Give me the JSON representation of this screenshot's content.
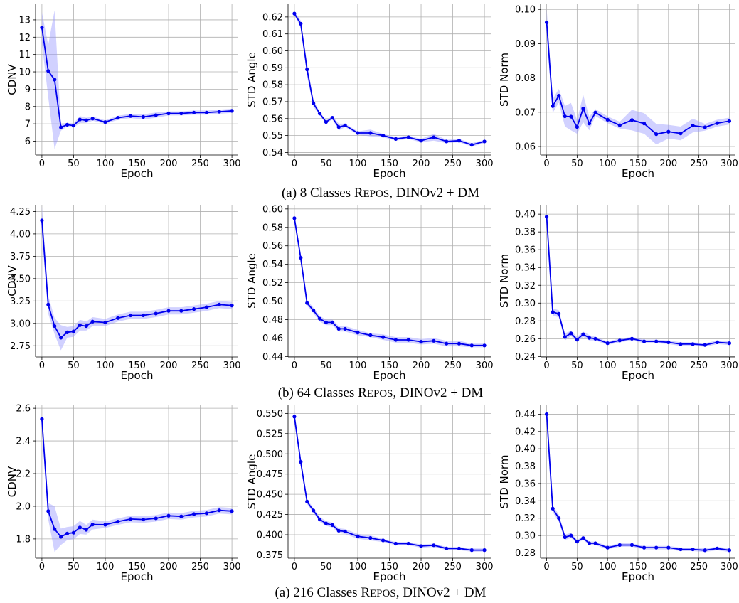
{
  "colors": {
    "line": "#0000ee",
    "band": "#9999ff",
    "grid": "#b0b0b0"
  },
  "captions": [
    {
      "prefix": "(a) 8 Classes ",
      "rep": "R",
      "epos": "EPOS",
      "suffix": ", DINOv2 + DM"
    },
    {
      "prefix": "(b) 64 Classes ",
      "rep": "R",
      "epos": "EPOS",
      "suffix": ", DINOv2 + DM"
    },
    {
      "prefix": "(a) 216 Classes ",
      "rep": "R",
      "epos": "EPOS",
      "suffix": ", DINOv2 + DM"
    }
  ],
  "chart_data": [
    {
      "type": "line",
      "row": 0,
      "col": 0,
      "xlabel": "Epoch",
      "ylabel": "CDNV",
      "xlim": [
        -10,
        310
      ],
      "xticks": [
        0,
        50,
        100,
        150,
        200,
        250,
        300
      ],
      "ylim": [
        5.2,
        13.9
      ],
      "yticks": [
        6,
        7,
        8,
        9,
        10,
        11,
        12,
        13
      ],
      "ydec": 0,
      "x": [
        0,
        10,
        20,
        30,
        40,
        50,
        60,
        70,
        80,
        100,
        120,
        140,
        160,
        180,
        200,
        220,
        240,
        260,
        280,
        300
      ],
      "y": [
        12.55,
        10.05,
        9.55,
        6.8,
        6.95,
        6.9,
        7.25,
        7.2,
        7.3,
        7.1,
        7.35,
        7.45,
        7.4,
        7.5,
        7.6,
        7.6,
        7.65,
        7.65,
        7.7,
        7.75
      ],
      "band": [
        0.9,
        1.5,
        4.0,
        0.2,
        0.1,
        0.12,
        0.2,
        0.15,
        0.12,
        0.1,
        0.12,
        0.12,
        0.15,
        0.15,
        0.12,
        0.12,
        0.12,
        0.12,
        0.12,
        0.12
      ]
    },
    {
      "type": "line",
      "row": 0,
      "col": 1,
      "xlabel": "Epoch",
      "ylabel": "STD Angle",
      "xlim": [
        -10,
        310
      ],
      "xticks": [
        0,
        50,
        100,
        150,
        200,
        250,
        300
      ],
      "ylim": [
        0.5385,
        0.6275
      ],
      "yticks": [
        0.54,
        0.55,
        0.56,
        0.57,
        0.58,
        0.59,
        0.6,
        0.61,
        0.62
      ],
      "ydec": 2,
      "x": [
        0,
        10,
        20,
        30,
        40,
        50,
        60,
        70,
        80,
        100,
        120,
        140,
        160,
        180,
        200,
        220,
        240,
        260,
        280,
        300
      ],
      "y": [
        0.622,
        0.616,
        0.589,
        0.569,
        0.563,
        0.558,
        0.5605,
        0.555,
        0.556,
        0.5515,
        0.5515,
        0.55,
        0.548,
        0.549,
        0.547,
        0.549,
        0.5465,
        0.547,
        0.5445,
        0.5465
      ],
      "band": [
        0.001,
        0.002,
        0.004,
        0.002,
        0.001,
        0.001,
        0.001,
        0.002,
        0.001,
        0.001,
        0.002,
        0.001,
        0.001,
        0.001,
        0.001,
        0.002,
        0.001,
        0.001,
        0.001,
        0.001
      ]
    },
    {
      "type": "line",
      "row": 0,
      "col": 2,
      "xlabel": "Epoch",
      "ylabel": "STD Norm",
      "xlim": [
        -10,
        310
      ],
      "xticks": [
        0,
        50,
        100,
        150,
        200,
        250,
        300
      ],
      "ylim": [
        0.0575,
        0.1015
      ],
      "yticks": [
        0.06,
        0.07,
        0.08,
        0.09,
        0.1
      ],
      "ydec": 2,
      "x": [
        0,
        10,
        20,
        30,
        40,
        50,
        60,
        70,
        80,
        100,
        120,
        140,
        160,
        180,
        200,
        220,
        240,
        260,
        280,
        300
      ],
      "y": [
        0.0962,
        0.0718,
        0.0748,
        0.0688,
        0.0687,
        0.0657,
        0.0711,
        0.0667,
        0.0699,
        0.0678,
        0.0662,
        0.0677,
        0.0667,
        0.0636,
        0.0643,
        0.0638,
        0.0661,
        0.0656,
        0.0668,
        0.0674
      ],
      "band": [
        0.004,
        0.002,
        0.002,
        0.003,
        0.004,
        0.002,
        0.004,
        0.002,
        0.001,
        0.001,
        0.001,
        0.003,
        0.003,
        0.003,
        0.002,
        0.002,
        0.002,
        0.001,
        0.001,
        0.001
      ]
    },
    {
      "type": "line",
      "row": 1,
      "col": 0,
      "xlabel": "Epoch",
      "ylabel": "CDNV",
      "xlim": [
        -10,
        310
      ],
      "xticks": [
        0,
        50,
        100,
        150,
        200,
        250,
        300
      ],
      "ylim": [
        2.625,
        4.325
      ],
      "yticks": [
        2.75,
        3.0,
        3.25,
        3.5,
        3.75,
        4.0,
        4.25
      ],
      "ydec": 2,
      "x": [
        0,
        10,
        20,
        30,
        40,
        50,
        60,
        70,
        80,
        100,
        120,
        140,
        160,
        180,
        200,
        220,
        240,
        260,
        280,
        300
      ],
      "y": [
        4.15,
        3.21,
        2.97,
        2.84,
        2.9,
        2.91,
        2.98,
        2.97,
        3.02,
        3.01,
        3.06,
        3.09,
        3.09,
        3.11,
        3.14,
        3.14,
        3.16,
        3.18,
        3.21,
        3.2
      ],
      "band": [
        0.16,
        0.1,
        0.09,
        0.14,
        0.06,
        0.06,
        0.06,
        0.05,
        0.05,
        0.04,
        0.04,
        0.04,
        0.04,
        0.04,
        0.04,
        0.04,
        0.04,
        0.04,
        0.04,
        0.04
      ]
    },
    {
      "type": "line",
      "row": 1,
      "col": 1,
      "xlabel": "Epoch",
      "ylabel": "STD Angle",
      "xlim": [
        -10,
        310
      ],
      "xticks": [
        0,
        50,
        100,
        150,
        200,
        250,
        300
      ],
      "ylim": [
        0.4395,
        0.6045
      ],
      "yticks": [
        0.44,
        0.46,
        0.48,
        0.5,
        0.52,
        0.54,
        0.56,
        0.58,
        0.6
      ],
      "ydec": 2,
      "x": [
        0,
        10,
        20,
        30,
        40,
        50,
        60,
        70,
        80,
        100,
        120,
        140,
        160,
        180,
        200,
        220,
        240,
        260,
        280,
        300
      ],
      "y": [
        0.59,
        0.547,
        0.498,
        0.49,
        0.481,
        0.477,
        0.477,
        0.47,
        0.47,
        0.466,
        0.463,
        0.461,
        0.458,
        0.458,
        0.456,
        0.457,
        0.454,
        0.454,
        0.452,
        0.452
      ],
      "band": [
        0.004,
        0.004,
        0.003,
        0.003,
        0.003,
        0.003,
        0.003,
        0.003,
        0.003,
        0.003,
        0.002,
        0.003,
        0.003,
        0.003,
        0.003,
        0.003,
        0.003,
        0.003,
        0.002,
        0.002
      ]
    },
    {
      "type": "line",
      "row": 1,
      "col": 2,
      "xlabel": "Epoch",
      "ylabel": "STD Norm",
      "xlim": [
        -10,
        310
      ],
      "xticks": [
        0,
        50,
        100,
        150,
        200,
        250,
        300
      ],
      "ylim": [
        0.2395,
        0.4105
      ],
      "yticks": [
        0.24,
        0.26,
        0.28,
        0.3,
        0.32,
        0.34,
        0.36,
        0.38,
        0.4
      ],
      "ydec": 2,
      "x": [
        0,
        10,
        20,
        30,
        40,
        50,
        60,
        70,
        80,
        100,
        120,
        140,
        160,
        180,
        200,
        220,
        240,
        260,
        280,
        300
      ],
      "y": [
        0.397,
        0.29,
        0.288,
        0.262,
        0.266,
        0.259,
        0.265,
        0.261,
        0.26,
        0.255,
        0.258,
        0.26,
        0.257,
        0.257,
        0.256,
        0.254,
        0.254,
        0.253,
        0.256,
        0.255
      ],
      "band": [
        0.004,
        0.004,
        0.004,
        0.004,
        0.003,
        0.003,
        0.003,
        0.003,
        0.002,
        0.002,
        0.002,
        0.002,
        0.002,
        0.002,
        0.002,
        0.002,
        0.002,
        0.002,
        0.002,
        0.002
      ]
    },
    {
      "type": "line",
      "row": 2,
      "col": 0,
      "xlabel": "Epoch",
      "ylabel": "CDNV",
      "xlim": [
        -10,
        310
      ],
      "xticks": [
        0,
        50,
        100,
        150,
        200,
        250,
        300
      ],
      "ylim": [
        1.682,
        2.618
      ],
      "yticks": [
        1.8,
        2.0,
        2.2,
        2.4,
        2.6
      ],
      "ydec": 1,
      "x": [
        0,
        10,
        20,
        30,
        40,
        50,
        60,
        70,
        80,
        100,
        120,
        140,
        160,
        180,
        200,
        220,
        240,
        260,
        280,
        300
      ],
      "y": [
        2.535,
        1.97,
        1.86,
        1.813,
        1.833,
        1.838,
        1.87,
        1.856,
        1.888,
        1.887,
        1.906,
        1.922,
        1.919,
        1.926,
        1.942,
        1.938,
        1.952,
        1.957,
        1.975,
        1.97
      ],
      "band": [
        0.01,
        0.05,
        0.14,
        0.05,
        0.04,
        0.04,
        0.04,
        0.03,
        0.03,
        0.02,
        0.02,
        0.02,
        0.02,
        0.02,
        0.02,
        0.02,
        0.02,
        0.02,
        0.02,
        0.02
      ]
    },
    {
      "type": "line",
      "row": 2,
      "col": 1,
      "xlabel": "Epoch",
      "ylabel": "STD Angle",
      "xlim": [
        -10,
        310
      ],
      "xticks": [
        0,
        50,
        100,
        150,
        200,
        250,
        300
      ],
      "ylim": [
        0.371,
        0.56
      ],
      "yticks": [
        0.375,
        0.4,
        0.425,
        0.45,
        0.475,
        0.5,
        0.525,
        0.55
      ],
      "ydec": 3,
      "x": [
        0,
        10,
        20,
        30,
        40,
        50,
        60,
        70,
        80,
        100,
        120,
        140,
        160,
        180,
        200,
        220,
        240,
        260,
        280,
        300
      ],
      "y": [
        0.546,
        0.49,
        0.441,
        0.43,
        0.419,
        0.414,
        0.412,
        0.405,
        0.404,
        0.398,
        0.396,
        0.393,
        0.389,
        0.389,
        0.386,
        0.387,
        0.383,
        0.383,
        0.381,
        0.381
      ],
      "band": [
        0.008,
        0.004,
        0.003,
        0.003,
        0.003,
        0.003,
        0.003,
        0.003,
        0.003,
        0.003,
        0.003,
        0.002,
        0.002,
        0.002,
        0.002,
        0.002,
        0.002,
        0.002,
        0.002,
        0.002
      ]
    },
    {
      "type": "line",
      "row": 2,
      "col": 2,
      "xlabel": "Epoch",
      "ylabel": "STD Norm",
      "xlim": [
        -10,
        310
      ],
      "xticks": [
        0,
        50,
        100,
        150,
        200,
        250,
        300
      ],
      "ylim": [
        0.2738,
        0.4502
      ],
      "yticks": [
        0.28,
        0.3,
        0.32,
        0.34,
        0.36,
        0.38,
        0.4,
        0.42,
        0.44
      ],
      "ydec": 2,
      "x": [
        0,
        10,
        20,
        30,
        40,
        50,
        60,
        70,
        80,
        100,
        120,
        140,
        160,
        180,
        200,
        220,
        240,
        260,
        280,
        300
      ],
      "y": [
        0.44,
        0.331,
        0.32,
        0.298,
        0.3,
        0.293,
        0.297,
        0.291,
        0.291,
        0.286,
        0.289,
        0.289,
        0.286,
        0.286,
        0.286,
        0.284,
        0.284,
        0.283,
        0.285,
        0.283
      ],
      "band": [
        0.002,
        0.004,
        0.004,
        0.003,
        0.003,
        0.002,
        0.002,
        0.002,
        0.002,
        0.002,
        0.002,
        0.002,
        0.002,
        0.002,
        0.002,
        0.002,
        0.002,
        0.002,
        0.002,
        0.002
      ]
    }
  ]
}
